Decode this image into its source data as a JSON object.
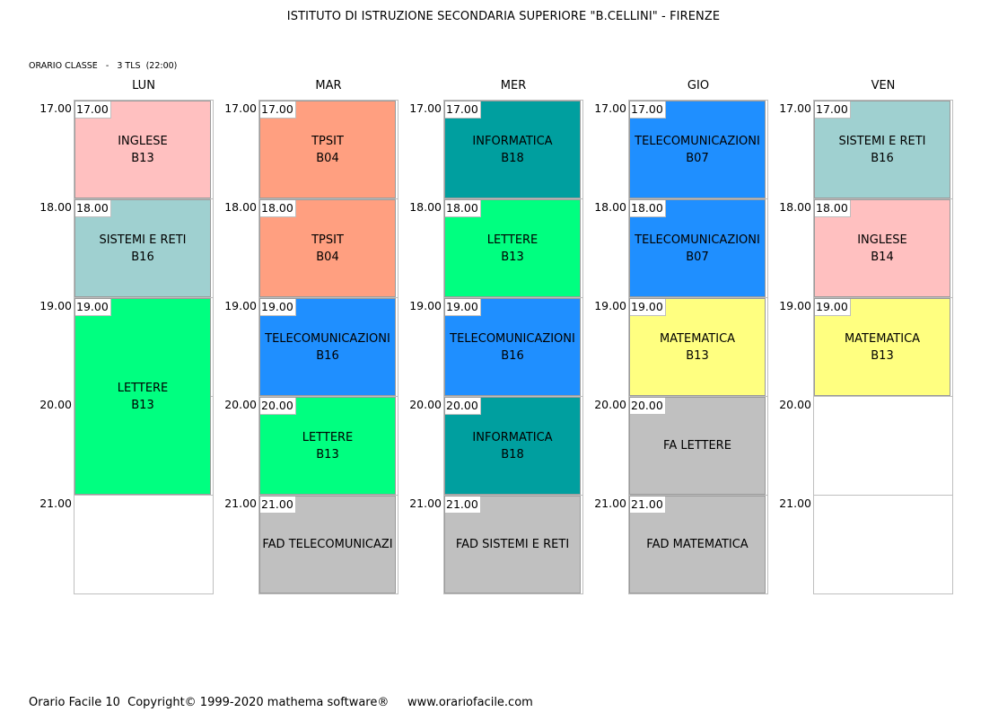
{
  "header": {
    "title": "ISTITUTO DI ISTRUZIONE SECONDARIA SUPERIORE \"B.CELLINI\" - FIRENZE",
    "classe": "ORARIO CLASSE   -   3 TLS  (22:00)"
  },
  "times": [
    "17.00",
    "18.00",
    "19.00",
    "20.00",
    "21.00"
  ],
  "colors": {
    "pink": "#ffc0c0",
    "salmon": "#ff9f80",
    "teal": "#009f9f",
    "blue": "#1f8fff",
    "grayblue": "#9fd0d0",
    "green": "#00ff80",
    "yellow": "#ffff80",
    "gray": "#c0c0c0"
  },
  "days": [
    {
      "name": "LUN",
      "lessons": [
        {
          "slot": 0,
          "span": 1,
          "start": "17.00",
          "subject": "INGLESE",
          "room": "B13",
          "color": "#ffc0c0"
        },
        {
          "slot": 1,
          "span": 1,
          "start": "18.00",
          "subject": "SISTEMI E RETI",
          "room": "B16",
          "color": "#9fd0d0"
        },
        {
          "slot": 2,
          "span": 2,
          "start": "19.00",
          "subject": "LETTERE",
          "room": "B13",
          "color": "#00ff80"
        }
      ]
    },
    {
      "name": "MAR",
      "lessons": [
        {
          "slot": 0,
          "span": 1,
          "start": "17.00",
          "subject": "TPSIT",
          "room": "B04",
          "color": "#ff9f80"
        },
        {
          "slot": 1,
          "span": 1,
          "start": "18.00",
          "subject": "TPSIT",
          "room": "B04",
          "color": "#ff9f80"
        },
        {
          "slot": 2,
          "span": 1,
          "start": "19.00",
          "subject": "TELECOMUNICAZIONI",
          "room": "B16",
          "color": "#1f8fff"
        },
        {
          "slot": 3,
          "span": 1,
          "start": "20.00",
          "subject": "LETTERE",
          "room": "B13",
          "color": "#00ff80"
        },
        {
          "slot": 4,
          "span": 1,
          "start": "21.00",
          "subject": "FAD TELECOMUNICAZI",
          "room": "",
          "color": "#c0c0c0"
        }
      ]
    },
    {
      "name": "MER",
      "lessons": [
        {
          "slot": 0,
          "span": 1,
          "start": "17.00",
          "subject": "INFORMATICA",
          "room": "B18",
          "color": "#009f9f"
        },
        {
          "slot": 1,
          "span": 1,
          "start": "18.00",
          "subject": "LETTERE",
          "room": "B13",
          "color": "#00ff80"
        },
        {
          "slot": 2,
          "span": 1,
          "start": "19.00",
          "subject": "TELECOMUNICAZIONI",
          "room": "B16",
          "color": "#1f8fff"
        },
        {
          "slot": 3,
          "span": 1,
          "start": "20.00",
          "subject": "INFORMATICA",
          "room": "B18",
          "color": "#009f9f"
        },
        {
          "slot": 4,
          "span": 1,
          "start": "21.00",
          "subject": "FAD SISTEMI E RETI",
          "room": "",
          "color": "#c0c0c0"
        }
      ]
    },
    {
      "name": "GIO",
      "lessons": [
        {
          "slot": 0,
          "span": 1,
          "start": "17.00",
          "subject": "TELECOMUNICAZIONI",
          "room": "B07",
          "color": "#1f8fff"
        },
        {
          "slot": 1,
          "span": 1,
          "start": "18.00",
          "subject": "TELECOMUNICAZIONI",
          "room": "B07",
          "color": "#1f8fff"
        },
        {
          "slot": 2,
          "span": 1,
          "start": "19.00",
          "subject": "MATEMATICA",
          "room": "B13",
          "color": "#ffff80"
        },
        {
          "slot": 3,
          "span": 1,
          "start": "20.00",
          "subject": "FA LETTERE",
          "room": "",
          "color": "#c0c0c0"
        },
        {
          "slot": 4,
          "span": 1,
          "start": "21.00",
          "subject": "FAD MATEMATICA",
          "room": "",
          "color": "#c0c0c0"
        }
      ]
    },
    {
      "name": "VEN",
      "lessons": [
        {
          "slot": 0,
          "span": 1,
          "start": "17.00",
          "subject": "SISTEMI E RETI",
          "room": "B16",
          "color": "#9fd0d0"
        },
        {
          "slot": 1,
          "span": 1,
          "start": "18.00",
          "subject": "INGLESE",
          "room": "B14",
          "color": "#ffc0c0"
        },
        {
          "slot": 2,
          "span": 1,
          "start": "19.00",
          "subject": "MATEMATICA",
          "room": "B13",
          "color": "#ffff80"
        }
      ]
    }
  ],
  "footer": {
    "text": "Orario Facile 10  Copyright© 1999-2020 mathema software®     www.orariofacile.com"
  }
}
